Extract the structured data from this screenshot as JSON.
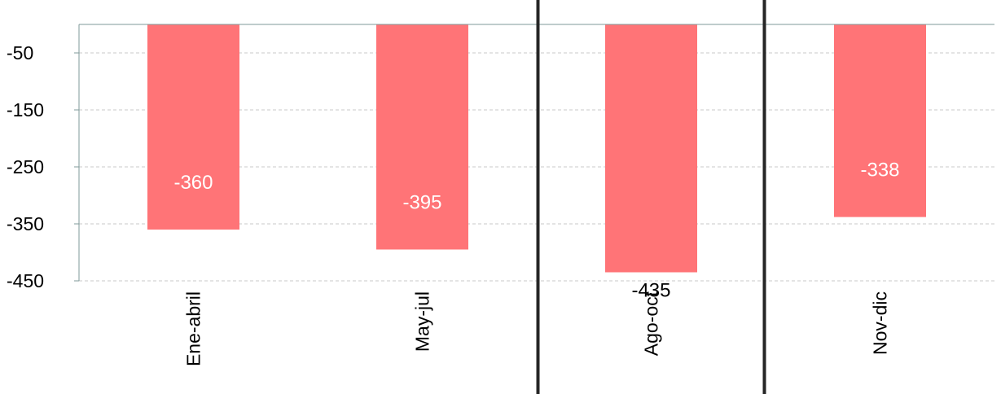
{
  "chart_data": {
    "type": "bar",
    "categories": [
      "Ene-abril",
      "May-jul",
      "Ago-oct",
      "Nov-dic"
    ],
    "values": [
      -360,
      -395,
      -435,
      -338
    ],
    "yticks": [
      -50,
      -150,
      -250,
      -350,
      -450
    ],
    "ylim": [
      -450,
      0
    ],
    "grid": true,
    "title": "",
    "xlabel": "",
    "ylabel": "",
    "highlighted_category": "Ago-oct",
    "colors": {
      "bar": "#FF7477",
      "inside_label": "#FFFFFF",
      "outside_label": "#000000",
      "grid": "#C8C8C8",
      "axis": "#7F9A9A",
      "highlight_border": "#262626"
    }
  }
}
